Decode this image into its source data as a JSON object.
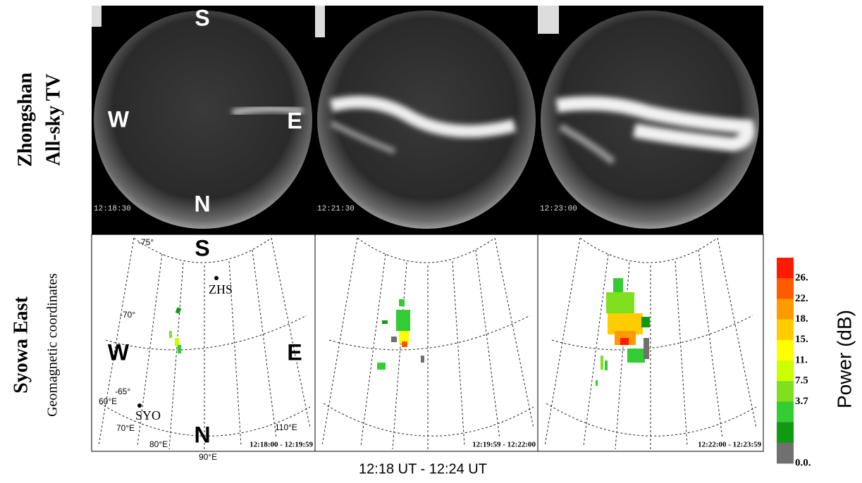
{
  "rows": {
    "allsky_title_lines": [
      "Zhongshan",
      "All-sky TV"
    ],
    "radar_title": "Syowa East",
    "radar_subtitle": "Geomagnetic coordinates"
  },
  "allsky": {
    "directions": {
      "south": "S",
      "west": "W",
      "east": "E",
      "north": "N"
    },
    "timestamps": [
      "12:18:30",
      "12:21:30",
      "12:23:00"
    ]
  },
  "radar": {
    "directions": {
      "south": "S",
      "west": "W",
      "east": "E",
      "north": "N"
    },
    "latitude_labels": [
      "-75°",
      "-70°",
      "-65°"
    ],
    "longitude_labels": [
      "60°E",
      "70°E",
      "80°E",
      "90°E",
      "110°E"
    ],
    "stations": [
      "ZHS",
      "SYO"
    ],
    "time_ranges": [
      "12:18:00 - 12:19:59",
      "12:19:59 - 12:22:00",
      "12:22:00 - 12:23:59"
    ]
  },
  "colorbar": {
    "label": "Power (dB)",
    "ticks": [
      "26.",
      "22.",
      "18.",
      "15.",
      "11.",
      "7.5",
      "3.7",
      "0.0."
    ],
    "colors": [
      "#ff1a00",
      "#ff5a00",
      "#ff9a00",
      "#ffcc00",
      "#ffff00",
      "#ccff00",
      "#7fe020",
      "#33cc33",
      "#119911",
      "#707070"
    ]
  },
  "caption": "12:18 UT - 12:24 UT"
}
